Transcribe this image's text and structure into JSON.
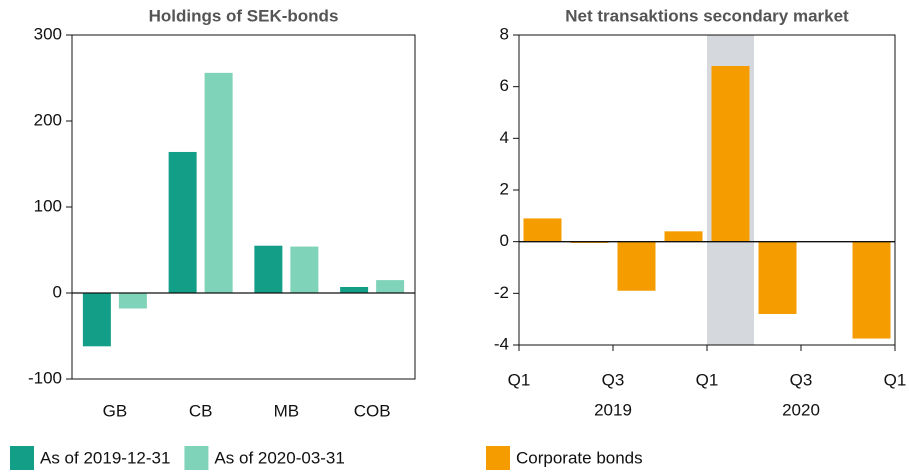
{
  "chart_data": [
    {
      "type": "bar",
      "title": "Holdings of SEK-bonds",
      "categories": [
        "GB",
        "CB",
        "MB",
        "COB"
      ],
      "series": [
        {
          "name": "As of 2019-12-31",
          "color": "#139e87",
          "values": [
            -62,
            164,
            55,
            7
          ]
        },
        {
          "name": "As of 2020-03-31",
          "color": "#7fd3b9",
          "values": [
            -18,
            256,
            54,
            15
          ]
        }
      ],
      "ylim": [
        -100,
        300
      ],
      "yticks": [
        -100,
        0,
        100,
        200,
        300
      ]
    },
    {
      "type": "bar",
      "title": "Net transaktions secondary market",
      "categories": [
        null,
        null,
        null,
        null,
        null,
        null,
        null,
        null
      ],
      "series": [
        {
          "name": "Corporate bonds",
          "color": "#f59c00",
          "values": [
            0.9,
            -0.05,
            -1.9,
            0.4,
            6.8,
            -2.8,
            null,
            -3.75
          ]
        }
      ],
      "xticks": [
        {
          "value": 0,
          "label": "Q1"
        },
        {
          "value": 2,
          "label": "Q3"
        },
        {
          "value": 4,
          "label": "Q1"
        },
        {
          "value": 6,
          "label": "Q3"
        },
        {
          "value": 8,
          "label": "Q1"
        }
      ],
      "year_labels": [
        {
          "value": 2,
          "label": "2019"
        },
        {
          "value": 6,
          "label": "2020"
        }
      ],
      "highlight": [
        4,
        5
      ],
      "ylim": [
        -4,
        8
      ],
      "yticks": [
        -4,
        -2,
        0,
        2,
        4,
        6,
        8
      ]
    }
  ]
}
